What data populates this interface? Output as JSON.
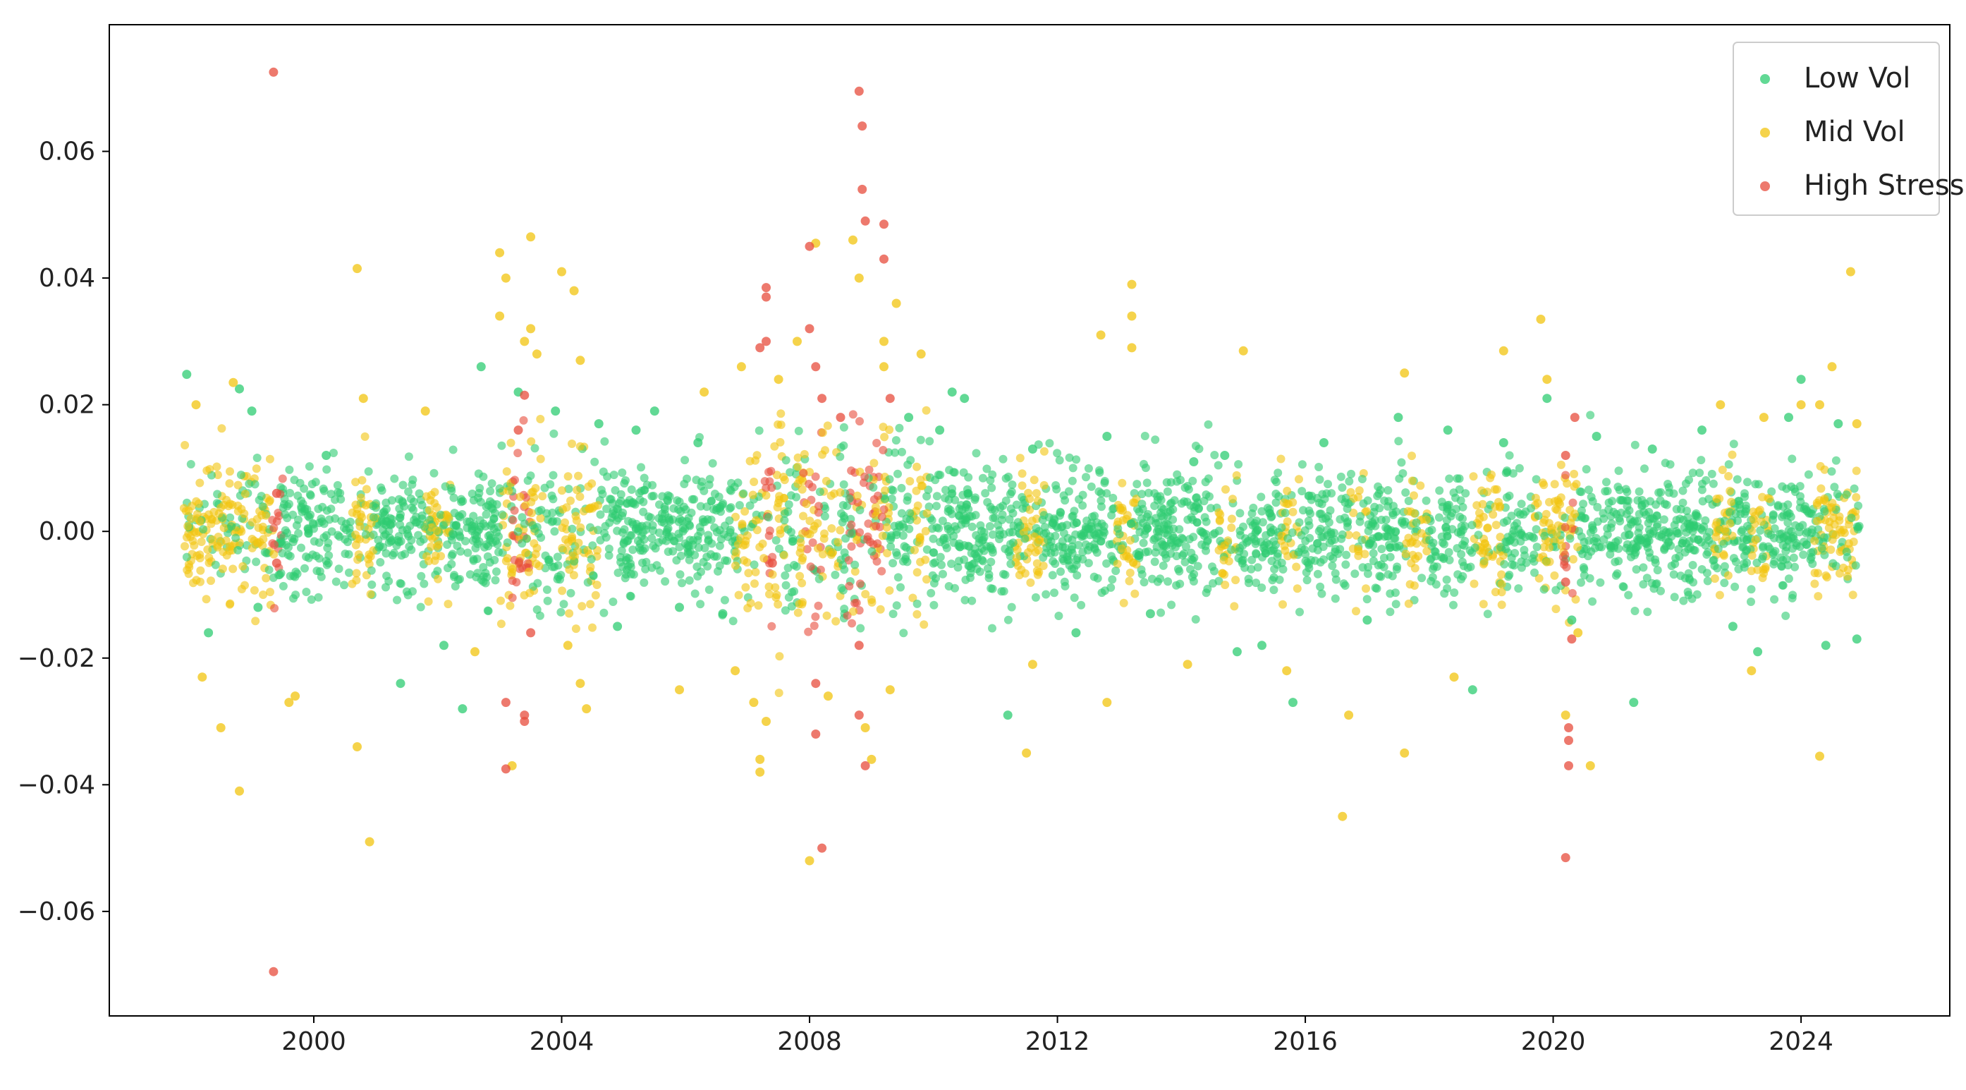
{
  "chart_data": {
    "type": "scatter",
    "title": "",
    "xlabel": "",
    "ylabel": "",
    "xlim": [
      1996.7,
      2026.4
    ],
    "ylim": [
      -0.0765,
      0.08
    ],
    "x_ticks": [
      2000,
      2004,
      2008,
      2012,
      2016,
      2020,
      2024
    ],
    "x_tick_labels": [
      "2000",
      "2004",
      "2008",
      "2012",
      "2016",
      "2020",
      "2024"
    ],
    "y_ticks": [
      -0.06,
      -0.04,
      -0.02,
      0.0,
      0.02,
      0.04,
      0.06
    ],
    "y_tick_labels": [
      "−0.06",
      "−0.04",
      "−0.02",
      "0.00",
      "0.02",
      "0.04",
      "0.06"
    ],
    "grid": false,
    "legend_position": "top-right",
    "series": [
      {
        "name": "Low Vol",
        "color": "#2ecc71",
        "points": [
          [
            1997.95,
            0.0248
          ],
          [
            1998.3,
            -0.016
          ],
          [
            1998.8,
            0.0225
          ],
          [
            1999.0,
            0.019
          ],
          [
            1999.1,
            -0.012
          ],
          [
            2000.2,
            0.012
          ],
          [
            2001.4,
            -0.024
          ],
          [
            2002.1,
            -0.018
          ],
          [
            2002.4,
            -0.028
          ],
          [
            2002.7,
            0.026
          ],
          [
            2003.3,
            0.022
          ],
          [
            2003.9,
            0.019
          ],
          [
            2004.6,
            0.017
          ],
          [
            2004.9,
            -0.015
          ],
          [
            2005.2,
            0.016
          ],
          [
            2005.5,
            0.019
          ],
          [
            2005.9,
            -0.012
          ],
          [
            2006.2,
            0.014
          ],
          [
            2006.6,
            -0.013
          ],
          [
            2009.6,
            0.018
          ],
          [
            2010.1,
            0.016
          ],
          [
            2010.3,
            0.022
          ],
          [
            2010.5,
            0.021
          ],
          [
            2011.2,
            -0.029
          ],
          [
            2011.6,
            0.013
          ],
          [
            2012.3,
            -0.016
          ],
          [
            2012.8,
            0.015
          ],
          [
            2013.5,
            -0.013
          ],
          [
            2014.2,
            0.011
          ],
          [
            2014.7,
            0.012
          ],
          [
            2014.9,
            -0.019
          ],
          [
            2015.3,
            -0.018
          ],
          [
            2015.8,
            -0.027
          ],
          [
            2016.3,
            0.014
          ],
          [
            2017.0,
            -0.014
          ],
          [
            2017.5,
            0.018
          ],
          [
            2018.3,
            0.016
          ],
          [
            2018.7,
            -0.025
          ],
          [
            2019.2,
            0.014
          ],
          [
            2019.9,
            0.021
          ],
          [
            2020.3,
            -0.014
          ],
          [
            2020.7,
            0.015
          ],
          [
            2021.3,
            -0.027
          ],
          [
            2021.6,
            0.013
          ],
          [
            2022.4,
            0.016
          ],
          [
            2022.9,
            -0.015
          ],
          [
            2023.3,
            -0.019
          ],
          [
            2023.8,
            0.018
          ],
          [
            2024.0,
            0.024
          ],
          [
            2024.4,
            -0.018
          ],
          [
            2024.9,
            -0.017
          ],
          [
            2024.6,
            0.017
          ]
        ]
      },
      {
        "name": "Mid Vol",
        "color": "#f1c40f",
        "points": [
          [
            1998.1,
            0.02
          ],
          [
            1998.2,
            -0.023
          ],
          [
            1998.5,
            -0.031
          ],
          [
            1998.7,
            0.0235
          ],
          [
            1998.8,
            -0.041
          ],
          [
            1999.6,
            -0.027
          ],
          [
            1999.7,
            -0.026
          ],
          [
            2000.7,
            0.0415
          ],
          [
            2000.7,
            -0.034
          ],
          [
            2000.9,
            -0.049
          ],
          [
            2000.8,
            0.021
          ],
          [
            2001.8,
            0.019
          ],
          [
            2002.6,
            -0.019
          ],
          [
            2003.0,
            0.044
          ],
          [
            2003.1,
            0.04
          ],
          [
            2003.0,
            0.034
          ],
          [
            2003.2,
            -0.037
          ],
          [
            2003.5,
            0.0465
          ],
          [
            2003.5,
            0.032
          ],
          [
            2003.4,
            0.03
          ],
          [
            2003.6,
            0.028
          ],
          [
            2004.0,
            0.041
          ],
          [
            2004.2,
            0.038
          ],
          [
            2004.3,
            0.027
          ],
          [
            2004.3,
            -0.024
          ],
          [
            2004.4,
            -0.028
          ],
          [
            2004.1,
            -0.018
          ],
          [
            2005.9,
            -0.025
          ],
          [
            2006.3,
            0.022
          ],
          [
            2006.8,
            -0.022
          ],
          [
            2006.9,
            0.026
          ],
          [
            2007.2,
            -0.038
          ],
          [
            2007.2,
            -0.036
          ],
          [
            2007.3,
            -0.03
          ],
          [
            2007.1,
            -0.027
          ],
          [
            2007.5,
            0.024
          ],
          [
            2007.8,
            0.03
          ],
          [
            2008.1,
            0.0455
          ],
          [
            2008.0,
            -0.052
          ],
          [
            2008.3,
            -0.026
          ],
          [
            2008.7,
            0.046
          ],
          [
            2008.8,
            0.04
          ],
          [
            2008.9,
            -0.031
          ],
          [
            2009.0,
            -0.036
          ],
          [
            2009.2,
            0.03
          ],
          [
            2009.2,
            0.026
          ],
          [
            2009.4,
            0.036
          ],
          [
            2009.3,
            -0.025
          ],
          [
            2009.8,
            0.028
          ],
          [
            2011.5,
            -0.035
          ],
          [
            2011.6,
            -0.021
          ],
          [
            2012.7,
            0.031
          ],
          [
            2012.8,
            -0.027
          ],
          [
            2013.2,
            0.039
          ],
          [
            2013.2,
            0.034
          ],
          [
            2013.2,
            0.029
          ],
          [
            2014.1,
            -0.021
          ],
          [
            2015.0,
            0.0285
          ],
          [
            2015.7,
            -0.022
          ],
          [
            2016.6,
            -0.045
          ],
          [
            2016.7,
            -0.029
          ],
          [
            2017.6,
            -0.035
          ],
          [
            2017.6,
            0.025
          ],
          [
            2018.4,
            -0.023
          ],
          [
            2019.2,
            0.0285
          ],
          [
            2019.8,
            0.0335
          ],
          [
            2019.9,
            0.024
          ],
          [
            2020.2,
            -0.029
          ],
          [
            2020.4,
            -0.016
          ],
          [
            2020.6,
            -0.037
          ],
          [
            2022.7,
            0.02
          ],
          [
            2023.2,
            -0.022
          ],
          [
            2023.4,
            0.018
          ],
          [
            2024.0,
            0.02
          ],
          [
            2024.3,
            0.02
          ],
          [
            2024.3,
            -0.0355
          ],
          [
            2024.5,
            0.026
          ],
          [
            2024.8,
            0.041
          ],
          [
            2024.9,
            0.017
          ]
        ]
      },
      {
        "name": "High Stress",
        "color": "#e74c3c",
        "points": [
          [
            1999.35,
            0.0725
          ],
          [
            1999.35,
            -0.0695
          ],
          [
            1999.4,
            0.006
          ],
          [
            1999.4,
            -0.005
          ],
          [
            2003.1,
            -0.027
          ],
          [
            2003.1,
            -0.0375
          ],
          [
            2003.4,
            -0.029
          ],
          [
            2003.4,
            -0.03
          ],
          [
            2003.4,
            0.0215
          ],
          [
            2003.3,
            0.016
          ],
          [
            2003.5,
            -0.016
          ],
          [
            2007.3,
            0.0385
          ],
          [
            2007.3,
            0.037
          ],
          [
            2007.3,
            0.03
          ],
          [
            2007.2,
            0.029
          ],
          [
            2007.4,
            -0.005
          ],
          [
            2008.0,
            0.045
          ],
          [
            2008.0,
            0.032
          ],
          [
            2008.1,
            0.026
          ],
          [
            2008.1,
            -0.024
          ],
          [
            2008.1,
            -0.032
          ],
          [
            2008.2,
            -0.05
          ],
          [
            2008.2,
            0.021
          ],
          [
            2008.5,
            0.018
          ],
          [
            2008.8,
            0.0695
          ],
          [
            2008.85,
            0.064
          ],
          [
            2008.85,
            0.054
          ],
          [
            2008.9,
            0.049
          ],
          [
            2008.8,
            -0.018
          ],
          [
            2008.8,
            -0.029
          ],
          [
            2008.9,
            -0.037
          ],
          [
            2009.2,
            0.0485
          ],
          [
            2009.2,
            0.043
          ],
          [
            2009.3,
            0.021
          ],
          [
            2020.2,
            0.012
          ],
          [
            2020.2,
            -0.008
          ],
          [
            2020.25,
            -0.031
          ],
          [
            2020.25,
            -0.033
          ],
          [
            2020.25,
            -0.037
          ],
          [
            2020.2,
            -0.0515
          ],
          [
            2020.3,
            -0.017
          ],
          [
            2020.35,
            0.018
          ]
        ]
      }
    ]
  }
}
